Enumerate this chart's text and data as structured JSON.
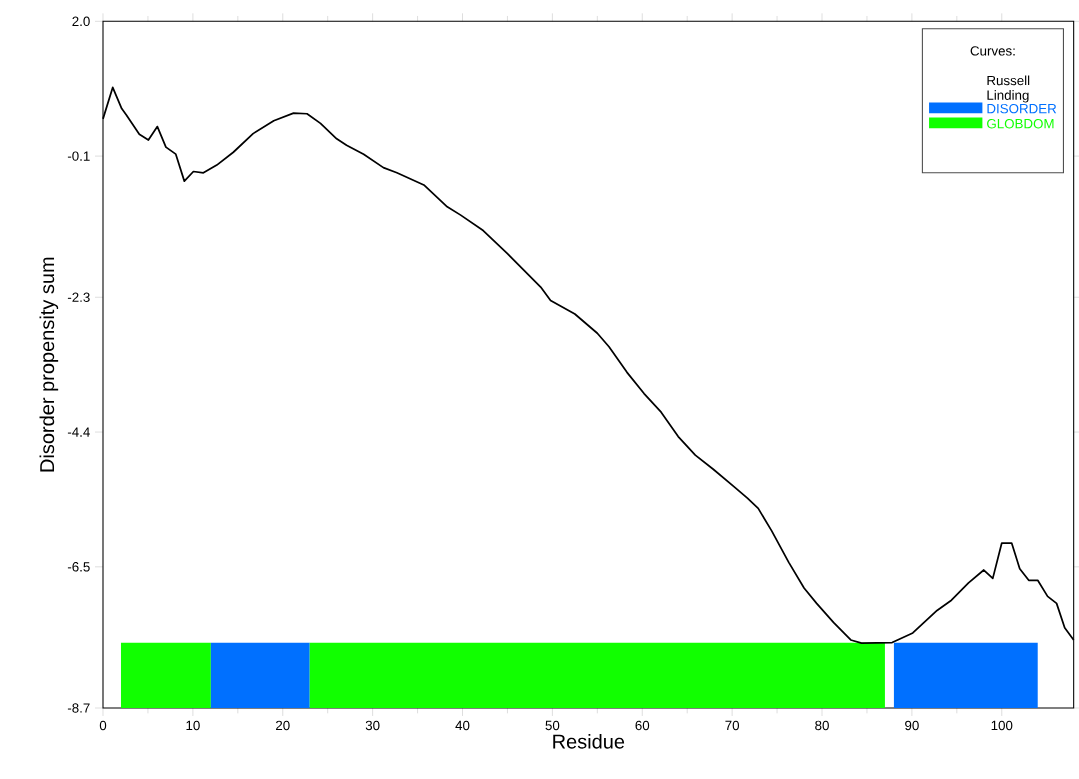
{
  "chart_data": {
    "type": "line",
    "xlabel": "Residue",
    "ylabel": "Disorder propensity sum",
    "legend_title": "Curves:",
    "legend": "top right",
    "xlim": [
      0,
      108
    ],
    "ylim": [
      -8.7,
      2.0
    ],
    "xticks": [
      0,
      10,
      20,
      30,
      40,
      50,
      60,
      70,
      80,
      90,
      100
    ],
    "yticks": [
      -8.7,
      -6.5,
      -4.4,
      -2.3,
      -0.1,
      {
        "value": 2.0,
        "label": "2.0"
      }
    ],
    "grid": false,
    "marker": "none",
    "line_style": "solid",
    "series": [
      {
        "name": "Russell Linding",
        "color": "#000000",
        "x": [
          0,
          1.08,
          2.08,
          2.6,
          4.04,
          5.05,
          6.05,
          7.0,
          8.1,
          9.05,
          10.06,
          11.17,
          12.66,
          14.5,
          16.7,
          19.0,
          21.2,
          22.7,
          24.2,
          26.0,
          27.1,
          29.0,
          31.2,
          32.7,
          35.7,
          38.3,
          39.8,
          42.3,
          45.0,
          48.7,
          49.8,
          52.5,
          55.0,
          56.3,
          58.3,
          60.2,
          62.1,
          64.0,
          65.9,
          67.9,
          70.2,
          71.7,
          72.9,
          74.4,
          76.3,
          78.0,
          79.4,
          81.3,
          83.2,
          84.4,
          87.8,
          90.1,
          92.8,
          94.4,
          96.3,
          98.0,
          99.0,
          100.0,
          101.1,
          102.0,
          103.0,
          104.0,
          105.1,
          106.1,
          107.0,
          108.0
        ],
        "values": [
          0.48,
          0.97,
          0.64,
          0.54,
          0.24,
          0.15,
          0.36,
          0.04,
          -0.07,
          -0.49,
          -0.34,
          -0.36,
          -0.24,
          -0.04,
          0.25,
          0.45,
          0.57,
          0.56,
          0.41,
          0.17,
          0.07,
          -0.07,
          -0.28,
          -0.36,
          -0.55,
          -0.89,
          -1.02,
          -1.26,
          -1.62,
          -2.14,
          -2.35,
          -2.56,
          -2.86,
          -3.07,
          -3.47,
          -3.8,
          -4.09,
          -4.47,
          -4.76,
          -4.98,
          -5.25,
          -5.43,
          -5.59,
          -5.94,
          -6.43,
          -6.83,
          -7.07,
          -7.37,
          -7.64,
          -7.69,
          -7.68,
          -7.53,
          -7.18,
          -7.02,
          -6.75,
          -6.55,
          -6.68,
          -6.13,
          -6.13,
          -6.53,
          -6.71,
          -6.71,
          -6.96,
          -7.07,
          -7.45,
          -7.64
        ]
      }
    ],
    "bands": [
      {
        "axis": "x",
        "from": 2,
        "to": 12,
        "color": "#11ff00"
      },
      {
        "axis": "x",
        "from": 12,
        "to": 23,
        "label": "DISORDER",
        "color": "#0070ff"
      },
      {
        "axis": "x",
        "from": 23,
        "to": 87,
        "label": "GLOBDOM",
        "color": "#11ff00"
      },
      {
        "axis": "x",
        "from": 88,
        "to": 104,
        "color": "#0070ff"
      }
    ]
  }
}
